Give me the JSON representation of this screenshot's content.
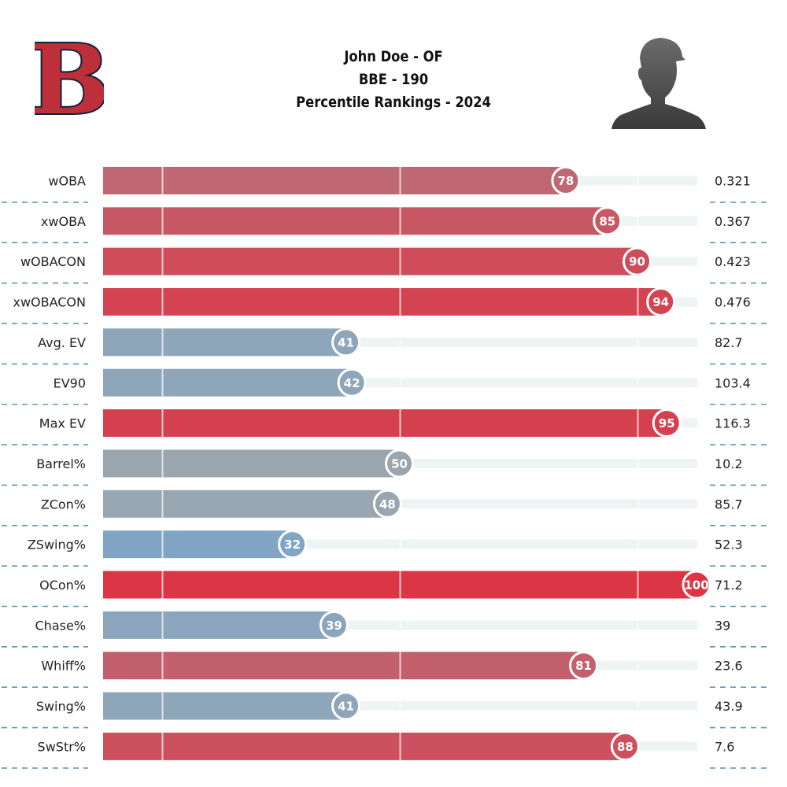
{
  "header": {
    "line1": "John Doe - OF",
    "line2": "BBE - 190",
    "line3": "Percentile Rankings - 2024"
  },
  "logo": {
    "letter": "B",
    "fill": "#bd3039",
    "outline": "#0c2340"
  },
  "colors": {
    "high": "#dc3545",
    "mid": "#9aa6ad",
    "low": "#7fa5c8",
    "track": "#eef4f4",
    "dash": "#5b9ab0"
  },
  "chart_data": {
    "type": "bar",
    "orientation": "horizontal",
    "xlim": [
      0,
      100
    ],
    "grid_lines_at": [
      10,
      50,
      90
    ],
    "categories": [
      "wOBA",
      "xwOBA",
      "wOBACON",
      "xwOBACON",
      "Avg. EV",
      "EV90",
      "Max EV",
      "Barrel%",
      "ZCon%",
      "ZSwing%",
      "OCon%",
      "Chase%",
      "Whiff%",
      "Swing%",
      "SwStr%"
    ],
    "percentiles": [
      78,
      85,
      90,
      94,
      41,
      42,
      95,
      50,
      48,
      32,
      100,
      39,
      81,
      41,
      88
    ],
    "stat_values": [
      "0.321",
      "0.367",
      "0.423",
      "0.476",
      "82.7",
      "103.4",
      "116.3",
      "10.2",
      "85.7",
      "52.3",
      "71.2",
      "39",
      "23.6",
      "43.9",
      "7.6"
    ]
  }
}
